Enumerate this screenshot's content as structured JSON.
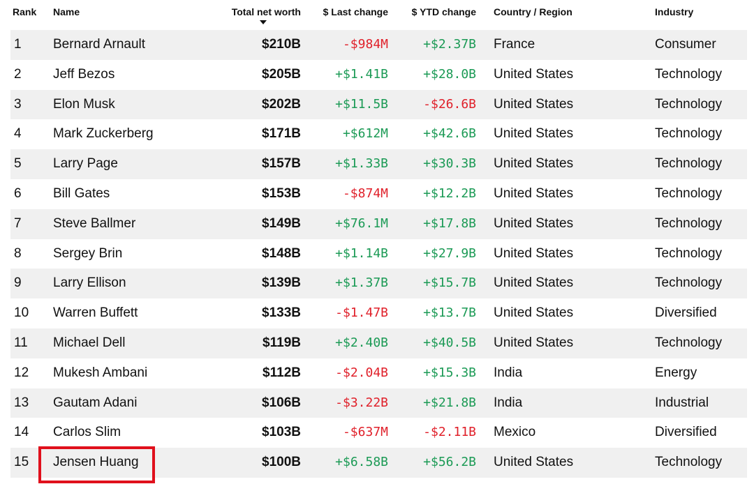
{
  "header": {
    "rank": "Rank",
    "name": "Name",
    "worth": "Total net worth",
    "last": "$ Last change",
    "ytd": "$ YTD change",
    "country": "Country / Region",
    "industry": "Industry"
  },
  "sort": {
    "column": "Total net worth",
    "direction": "descending"
  },
  "colors": {
    "negative": "#e0202a",
    "positive": "#1b9a55",
    "highlight": "#e0101c",
    "stripe": "#f0f0f0"
  },
  "highlighted_row": "Jensen Huang",
  "rows": [
    {
      "rank": "1",
      "name": "Bernard Arnault",
      "worth": "$210B",
      "last": "-$984M",
      "ytd": "+$2.37B",
      "country": "France",
      "industry": "Consumer"
    },
    {
      "rank": "2",
      "name": "Jeff Bezos",
      "worth": "$205B",
      "last": "+$1.41B",
      "ytd": "+$28.0B",
      "country": "United States",
      "industry": "Technology"
    },
    {
      "rank": "3",
      "name": "Elon Musk",
      "worth": "$202B",
      "last": "+$11.5B",
      "ytd": "-$26.6B",
      "country": "United States",
      "industry": "Technology"
    },
    {
      "rank": "4",
      "name": "Mark Zuckerberg",
      "worth": "$171B",
      "last": "+$612M",
      "ytd": "+$42.6B",
      "country": "United States",
      "industry": "Technology"
    },
    {
      "rank": "5",
      "name": "Larry Page",
      "worth": "$157B",
      "last": "+$1.33B",
      "ytd": "+$30.3B",
      "country": "United States",
      "industry": "Technology"
    },
    {
      "rank": "6",
      "name": "Bill Gates",
      "worth": "$153B",
      "last": "-$874M",
      "ytd": "+$12.2B",
      "country": "United States",
      "industry": "Technology"
    },
    {
      "rank": "7",
      "name": "Steve Ballmer",
      "worth": "$149B",
      "last": "+$76.1M",
      "ytd": "+$17.8B",
      "country": "United States",
      "industry": "Technology"
    },
    {
      "rank": "8",
      "name": "Sergey Brin",
      "worth": "$148B",
      "last": "+$1.14B",
      "ytd": "+$27.9B",
      "country": "United States",
      "industry": "Technology"
    },
    {
      "rank": "9",
      "name": "Larry Ellison",
      "worth": "$139B",
      "last": "+$1.37B",
      "ytd": "+$15.7B",
      "country": "United States",
      "industry": "Technology"
    },
    {
      "rank": "10",
      "name": "Warren Buffett",
      "worth": "$133B",
      "last": "-$1.47B",
      "ytd": "+$13.7B",
      "country": "United States",
      "industry": "Diversified"
    },
    {
      "rank": "11",
      "name": "Michael Dell",
      "worth": "$119B",
      "last": "+$2.40B",
      "ytd": "+$40.5B",
      "country": "United States",
      "industry": "Technology"
    },
    {
      "rank": "12",
      "name": "Mukesh Ambani",
      "worth": "$112B",
      "last": "-$2.04B",
      "ytd": "+$15.3B",
      "country": "India",
      "industry": "Energy"
    },
    {
      "rank": "13",
      "name": "Gautam Adani",
      "worth": "$106B",
      "last": "-$3.22B",
      "ytd": "+$21.8B",
      "country": "India",
      "industry": "Industrial"
    },
    {
      "rank": "14",
      "name": "Carlos Slim",
      "worth": "$103B",
      "last": "-$637M",
      "ytd": "-$2.11B",
      "country": "Mexico",
      "industry": "Diversified"
    },
    {
      "rank": "15",
      "name": "Jensen Huang",
      "worth": "$100B",
      "last": "+$6.58B",
      "ytd": "+$56.2B",
      "country": "United States",
      "industry": "Technology"
    }
  ]
}
